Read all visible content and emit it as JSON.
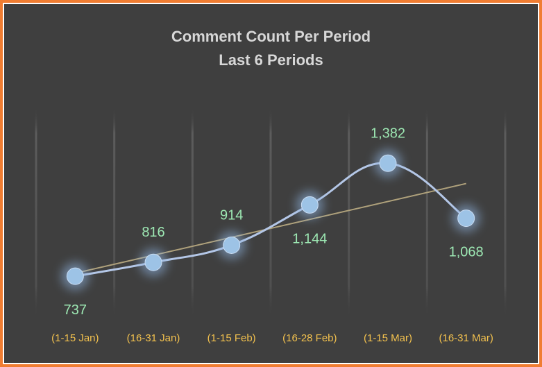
{
  "chart_data": {
    "type": "line",
    "title": "Comment Count Per Period",
    "subtitle": "Last 6 Periods",
    "categories": [
      "(1-15 Jan)",
      "(16-31 Jan)",
      "(1-15 Feb)",
      "(16-28 Feb)",
      "(1-15 Mar)",
      "(16-31 Mar)"
    ],
    "series": [
      {
        "name": "Comment Count",
        "values": [
          737,
          816,
          914,
          1144,
          1382,
          1068
        ],
        "labels": [
          "737",
          "816",
          "914",
          "1,144",
          "1,382",
          "1,068"
        ],
        "label_positions": [
          "below",
          "above",
          "above",
          "below",
          "above",
          "below"
        ]
      }
    ],
    "trendline": {
      "type": "linear"
    },
    "ylim": [
      500,
      1700
    ],
    "xlabel": "",
    "ylabel": "",
    "grid": true,
    "colors": {
      "line": "#b4c7e7",
      "marker": "#9dc3e6",
      "marker_glow": "#8fb4e0",
      "trend": "#b0a27c",
      "tick_label": "#f2c14e",
      "data_label": "#9de8b3",
      "gridline": "#5a5a5a",
      "background": "#3f3f3f",
      "border": "#f07d32",
      "title": "#d7d7d7"
    }
  }
}
